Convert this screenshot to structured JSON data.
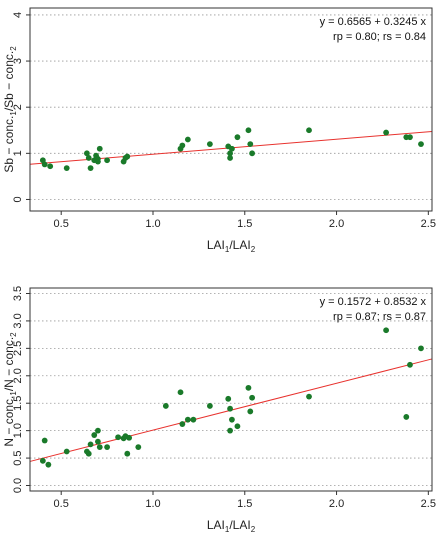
{
  "chart_data": [
    {
      "type": "scatter",
      "xlabel": {
        "base": "LAI",
        "sub1": "1",
        "mid": "/LAI",
        "sub2": "2"
      },
      "ylabel": {
        "base1": "Sb − conc.",
        "sub1": "1",
        "mid": "/Sb − conc.",
        "sub2": "2"
      },
      "xlim": [
        0.33,
        2.52
      ],
      "ylim": [
        -0.25,
        4.15
      ],
      "xticks": [
        "0.5",
        "1.0",
        "1.5",
        "2.0",
        "2.5"
      ],
      "yticks": [
        "0",
        "1",
        "2",
        "3",
        "4"
      ],
      "grid": "horizontal-dotted",
      "annotation_line1": "y = 0.6565 + 0.3245 x",
      "annotation_line2": "rp = 0.80; rs = 0.84",
      "fit": {
        "intercept": 0.6565,
        "slope": 0.3245
      },
      "point_color": "#1a7a2a",
      "line_color": "#e8322e",
      "x": [
        0.4,
        0.41,
        0.44,
        0.53,
        0.64,
        0.65,
        0.66,
        0.68,
        0.69,
        0.7,
        0.7,
        0.71,
        0.75,
        0.84,
        0.85,
        0.86,
        1.15,
        1.16,
        1.19,
        1.31,
        1.41,
        1.42,
        1.42,
        1.43,
        1.46,
        1.52,
        1.53,
        1.54,
        1.85,
        2.27,
        2.38,
        2.4,
        2.46
      ],
      "y": [
        0.85,
        0.76,
        0.72,
        0.68,
        1.0,
        0.9,
        0.68,
        0.85,
        0.95,
        0.88,
        0.82,
        1.1,
        0.85,
        0.82,
        0.9,
        0.93,
        1.1,
        1.17,
        1.3,
        1.2,
        1.15,
        1.0,
        0.9,
        1.1,
        1.35,
        1.5,
        1.2,
        1.0,
        1.5,
        1.45,
        1.35,
        1.35,
        1.2
      ]
    },
    {
      "type": "scatter",
      "xlabel": {
        "base": "LAI",
        "sub1": "1",
        "mid": "/LAI",
        "sub2": "2"
      },
      "ylabel": {
        "base1": "N − conc.",
        "sub1": "1",
        "mid": "/N − conc.",
        "sub2": "2"
      },
      "xlim": [
        0.33,
        2.52
      ],
      "ylim": [
        -0.1,
        3.6
      ],
      "xticks": [
        "0.5",
        "1.0",
        "1.5",
        "2.0",
        "2.5"
      ],
      "yticks": [
        "0.0",
        "0.5",
        "1.0",
        "1.5",
        "2.0",
        "2.5",
        "3.0",
        "3.5"
      ],
      "grid": "horizontal-dotted",
      "annotation_line1": "y = 0.1572 + 0.8532 x",
      "annotation_line2": "rp = 0.87; rs = 0.87",
      "fit": {
        "intercept": 0.1572,
        "slope": 0.8532
      },
      "point_color": "#1a7a2a",
      "line_color": "#e8322e",
      "x": [
        0.4,
        0.41,
        0.43,
        0.53,
        0.64,
        0.65,
        0.66,
        0.68,
        0.7,
        0.7,
        0.71,
        0.75,
        0.81,
        0.84,
        0.85,
        0.86,
        0.87,
        0.92,
        1.07,
        1.15,
        1.16,
        1.19,
        1.22,
        1.31,
        1.41,
        1.42,
        1.42,
        1.43,
        1.46,
        1.52,
        1.53,
        1.54,
        1.85,
        2.27,
        2.38,
        2.4,
        2.46
      ],
      "y": [
        0.45,
        0.82,
        0.38,
        0.62,
        0.62,
        0.58,
        0.75,
        0.92,
        1.0,
        0.8,
        0.7,
        0.7,
        0.88,
        0.86,
        0.9,
        0.58,
        0.87,
        0.7,
        1.45,
        1.7,
        1.12,
        1.2,
        1.2,
        1.45,
        1.58,
        1.4,
        1.0,
        1.2,
        1.08,
        1.78,
        1.35,
        1.6,
        1.62,
        2.83,
        1.25,
        2.2,
        2.5
      ]
    }
  ]
}
